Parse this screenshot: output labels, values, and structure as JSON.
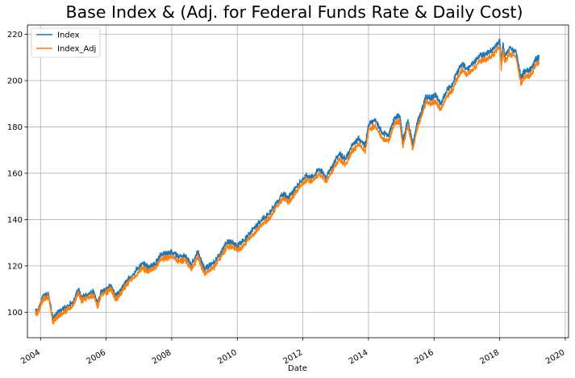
{
  "chart_data": {
    "type": "line",
    "title": "Base Index & (Adj. for Federal Funds Rate & Daily Cost)",
    "xlabel": "Date",
    "ylabel": "",
    "xlim": [
      2003.6,
      2020.1
    ],
    "ylim": [
      89,
      224
    ],
    "x_ticks": [
      "2004",
      "2006",
      "2008",
      "2010",
      "2012",
      "2014",
      "2016",
      "2018",
      "2020"
    ],
    "y_ticks": [
      100,
      120,
      140,
      160,
      180,
      200,
      220
    ],
    "grid": true,
    "legend_position": "top-left",
    "x": [
      2003.85,
      2003.95,
      2004.05,
      2004.12,
      2004.25,
      2004.38,
      2004.45,
      2004.55,
      2004.75,
      2005.0,
      2005.15,
      2005.25,
      2005.4,
      2005.6,
      2005.75,
      2005.85,
      2006.0,
      2006.15,
      2006.3,
      2006.4,
      2006.55,
      2006.7,
      2006.9,
      2007.1,
      2007.3,
      2007.5,
      2007.65,
      2007.85,
      2008.0,
      2008.2,
      2008.4,
      2008.6,
      2008.8,
      2008.9,
      2009.0,
      2009.15,
      2009.3,
      2009.5,
      2009.7,
      2009.85,
      2010.0,
      2010.2,
      2010.4,
      2010.6,
      2010.8,
      2011.0,
      2011.2,
      2011.4,
      2011.55,
      2011.7,
      2011.9,
      2012.1,
      2012.3,
      2012.5,
      2012.7,
      2012.9,
      2013.1,
      2013.3,
      2013.5,
      2013.7,
      2013.9,
      2014.0,
      2014.2,
      2014.4,
      2014.6,
      2014.8,
      2014.95,
      2015.05,
      2015.2,
      2015.35,
      2015.5,
      2015.6,
      2015.75,
      2015.9,
      2016.05,
      2016.2,
      2016.4,
      2016.55,
      2016.7,
      2016.85,
      2017.0,
      2017.2,
      2017.4,
      2017.6,
      2017.8,
      2018.0,
      2018.05,
      2018.1,
      2018.15,
      2018.3,
      2018.5,
      2018.65,
      2018.75,
      2018.9,
      2019.0,
      2019.1,
      2019.2
    ],
    "series": [
      {
        "name": "Index",
        "color": "#1f77b4",
        "values": [
          100.0,
          101.5,
          106.0,
          107.0,
          107.5,
          97.0,
          98.5,
          100.0,
          102.0,
          104.5,
          110.0,
          106.5,
          107.5,
          109.0,
          104.0,
          109.0,
          110.0,
          111.5,
          107.0,
          108.5,
          112.0,
          114.5,
          118.0,
          121.0,
          119.5,
          121.0,
          124.5,
          125.5,
          126.0,
          124.0,
          124.5,
          120.5,
          126.0,
          122.0,
          118.5,
          120.0,
          121.5,
          126.0,
          130.5,
          130.0,
          128.5,
          131.0,
          134.5,
          137.5,
          140.5,
          143.0,
          147.5,
          151.0,
          149.5,
          152.0,
          156.0,
          159.0,
          158.5,
          162.0,
          158.5,
          163.0,
          168.5,
          166.0,
          172.0,
          175.0,
          172.0,
          181.0,
          183.0,
          178.0,
          176.0,
          184.0,
          185.0,
          174.0,
          183.0,
          173.0,
          182.5,
          186.0,
          193.0,
          192.5,
          193.5,
          190.0,
          196.0,
          198.0,
          203.5,
          207.0,
          205.0,
          207.5,
          211.0,
          211.5,
          213.5,
          217.5,
          208.0,
          216.0,
          210.5,
          214.0,
          212.5,
          201.0,
          204.0,
          204.5,
          206.0,
          209.5,
          210.0
        ]
      },
      {
        "name": "Index_Adj",
        "color": "#ff7f0e",
        "values": [
          99.0,
          100.5,
          105.0,
          106.0,
          106.5,
          95.5,
          97.0,
          98.5,
          100.5,
          103.0,
          108.5,
          105.0,
          106.0,
          107.5,
          102.5,
          107.5,
          108.5,
          110.0,
          105.5,
          107.0,
          110.5,
          113.0,
          116.0,
          119.0,
          117.5,
          119.0,
          122.5,
          123.5,
          124.0,
          122.0,
          122.5,
          118.5,
          124.0,
          120.0,
          116.5,
          118.0,
          119.5,
          124.0,
          128.5,
          128.0,
          126.5,
          129.0,
          132.5,
          135.5,
          138.5,
          141.0,
          145.5,
          149.0,
          147.5,
          150.0,
          154.0,
          157.0,
          156.5,
          160.0,
          156.5,
          161.0,
          166.0,
          163.5,
          169.5,
          172.5,
          169.5,
          178.5,
          180.5,
          175.5,
          173.5,
          181.5,
          182.5,
          171.5,
          180.5,
          170.5,
          180.0,
          183.5,
          190.5,
          190.0,
          191.0,
          187.5,
          193.5,
          195.5,
          201.0,
          204.5,
          202.5,
          205.0,
          208.5,
          209.0,
          211.0,
          215.0,
          205.5,
          213.5,
          208.0,
          211.5,
          210.0,
          198.5,
          201.5,
          202.0,
          203.5,
          207.0,
          207.5
        ]
      }
    ]
  }
}
